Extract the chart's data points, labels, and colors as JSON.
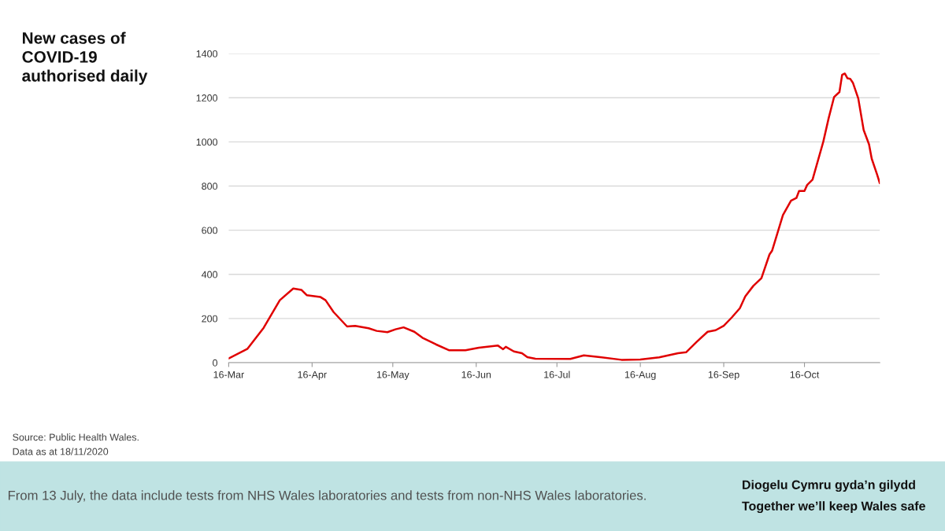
{
  "chart_data": {
    "type": "line",
    "title": "New cases of\nCOVID-19\nauthorised daily",
    "x": [
      "2020-03-16",
      "2020-03-23",
      "2020-03-29",
      "2020-04-04",
      "2020-04-09",
      "2020-04-12",
      "2020-04-14",
      "2020-04-19",
      "2020-04-21",
      "2020-04-24",
      "2020-04-29",
      "2020-05-02",
      "2020-05-07",
      "2020-05-10",
      "2020-05-14",
      "2020-05-17",
      "2020-05-20",
      "2020-05-24",
      "2020-05-27",
      "2020-06-01",
      "2020-06-06",
      "2020-06-12",
      "2020-06-17",
      "2020-06-24",
      "2020-06-26",
      "2020-06-27",
      "2020-06-30",
      "2020-07-03",
      "2020-07-05",
      "2020-07-08",
      "2020-07-21",
      "2020-07-26",
      "2020-08-01",
      "2020-08-09",
      "2020-08-16",
      "2020-08-23",
      "2020-08-30",
      "2020-09-02",
      "2020-09-06",
      "2020-09-10",
      "2020-09-13",
      "2020-09-16",
      "2020-09-19",
      "2020-09-22",
      "2020-09-24",
      "2020-09-27",
      "2020-09-30",
      "2020-10-03",
      "2020-10-04",
      "2020-10-08",
      "2020-10-11",
      "2020-10-13",
      "2020-10-14",
      "2020-10-16",
      "2020-10-17",
      "2020-10-19",
      "2020-10-23",
      "2020-10-25",
      "2020-10-27",
      "2020-10-29",
      "2020-10-30",
      "2020-10-31",
      "2020-11-01",
      "2020-11-02",
      "2020-11-03",
      "2020-11-05",
      "2020-11-07",
      "2020-11-09",
      "2020-11-10",
      "2020-11-12",
      "2020-11-13"
    ],
    "series": [
      {
        "color": "#e00000",
        "values": [
          19,
          63,
          158,
          283,
          336,
          330,
          306,
          298,
          283,
          229,
          164,
          167,
          156,
          144,
          138,
          151,
          160,
          140,
          113,
          83,
          56,
          56,
          68,
          78,
          61,
          72,
          51,
          43,
          25,
          18,
          17,
          33,
          25,
          13,
          14,
          24,
          43,
          47,
          95,
          140,
          147,
          167,
          205,
          247,
          300,
          348,
          383,
          490,
          508,
          669,
          734,
          746,
          778,
          778,
          805,
          829,
          1001,
          1108,
          1203,
          1226,
          1304,
          1310,
          1288,
          1286,
          1268,
          1197,
          1054,
          989,
          924,
          852,
          813
        ]
      }
    ],
    "xlim": [
      "2020-03-16",
      "2020-11-13"
    ],
    "xticks": [
      {
        "value": "2020-03-16",
        "label": "16-Mar"
      },
      {
        "value": "2020-04-16",
        "label": "16-Apr"
      },
      {
        "value": "2020-05-16",
        "label": "16-May"
      },
      {
        "value": "2020-06-16",
        "label": "16-Jun"
      },
      {
        "value": "2020-07-16",
        "label": "16-Jul"
      },
      {
        "value": "2020-08-16",
        "label": "16-Aug"
      },
      {
        "value": "2020-09-16",
        "label": "16-Sep"
      },
      {
        "value": "2020-10-16",
        "label": "16-Oct"
      }
    ],
    "ylim": [
      0,
      1400
    ],
    "yticks": [
      0,
      200,
      400,
      600,
      800,
      1000,
      1200,
      1400
    ],
    "grid": "y",
    "legend": false,
    "marker": "none",
    "line_style": "solid",
    "annotations": [
      "Source: Public Health Wales.",
      "Data as at 18/11/2020",
      "From 13 July, the data include tests from NHS Wales laboratories and tests from non-NHS Wales laboratories.",
      "Diogelu Cymru gyda’n gilydd",
      "Together we’ll keep Wales safe"
    ]
  }
}
